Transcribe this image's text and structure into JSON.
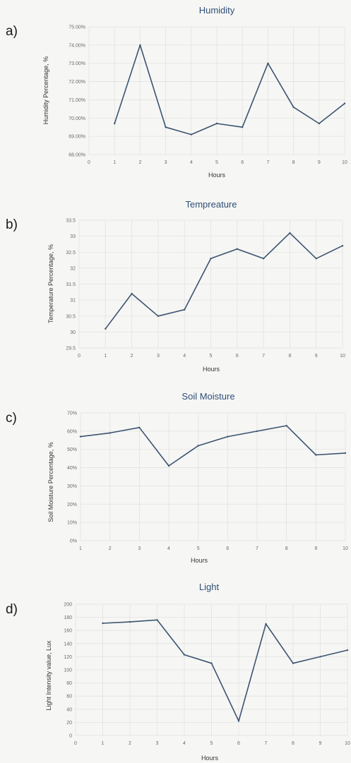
{
  "panel_letters": [
    "a)",
    "b)",
    "c)",
    "d)"
  ],
  "colors": {
    "line": "#3b5470",
    "title": "#2f4f78",
    "grid": "#e2e2e2",
    "background": "#f6f6f4"
  },
  "chart_data": [
    {
      "type": "line",
      "title": "Humidity",
      "xlabel": "Hours",
      "ylabel": "Humidity Percentage, %",
      "x": [
        1,
        2,
        3,
        4,
        5,
        6,
        7,
        8,
        9,
        10
      ],
      "series": [
        {
          "values": [
            69.7,
            74.0,
            69.5,
            69.1,
            69.7,
            69.5,
            73.0,
            70.6,
            69.7,
            70.8
          ]
        }
      ],
      "xlim": [
        0,
        10
      ],
      "ylim": [
        68,
        75
      ],
      "xticks": [
        0,
        1,
        2,
        3,
        4,
        5,
        6,
        7,
        8,
        9,
        10
      ],
      "xtick_labels": [
        "0",
        "1",
        "2",
        "3",
        "4",
        "5",
        "6",
        "7",
        "8",
        "9",
        "10"
      ],
      "yticks": [
        68,
        69,
        70,
        71,
        72,
        73,
        74,
        75
      ],
      "ytick_labels": [
        "68.00%",
        "69.00%",
        "70.00%",
        "71.00%",
        "72.00%",
        "73.00%",
        "74.00%",
        "75.00%"
      ],
      "grid": true,
      "legend": "none"
    },
    {
      "type": "line",
      "title": "Tempreature",
      "xlabel": "Hours",
      "ylabel": "Temperature Percentage, %",
      "x": [
        1,
        2,
        3,
        4,
        5,
        6,
        7,
        8,
        9,
        10
      ],
      "series": [
        {
          "values": [
            30.1,
            31.2,
            30.5,
            30.7,
            32.3,
            32.6,
            32.3,
            33.1,
            32.3,
            32.7
          ]
        }
      ],
      "xlim": [
        0,
        10
      ],
      "ylim": [
        29.5,
        33.5
      ],
      "xticks": [
        0,
        1,
        2,
        3,
        4,
        5,
        6,
        7,
        8,
        9,
        10
      ],
      "xtick_labels": [
        "0",
        "1",
        "2",
        "3",
        "4",
        "5",
        "6",
        "7",
        "8",
        "9",
        "10"
      ],
      "yticks": [
        29.5,
        30,
        30.5,
        31,
        31.5,
        32,
        32.5,
        33,
        33.5
      ],
      "ytick_labels": [
        "29.5",
        "30",
        "30.5",
        "31",
        "31.5",
        "32",
        "32.5",
        "33",
        "33.5"
      ],
      "grid": true,
      "legend": "none"
    },
    {
      "type": "line",
      "title": "Soil Moisture",
      "xlabel": "Hours",
      "ylabel": "Soil Moisture Percentage, %",
      "x": [
        1,
        2,
        3,
        4,
        5,
        6,
        7,
        8,
        9,
        10
      ],
      "series": [
        {
          "values": [
            57,
            59,
            62,
            41,
            52,
            57,
            60,
            63,
            47,
            48
          ]
        }
      ],
      "xlim": [
        1,
        10
      ],
      "ylim": [
        0,
        70
      ],
      "xticks": [
        1,
        2,
        3,
        4,
        5,
        6,
        7,
        8,
        9,
        10
      ],
      "xtick_labels": [
        "1",
        "2",
        "3",
        "4",
        "5",
        "6",
        "7",
        "8",
        "9",
        "10"
      ],
      "yticks": [
        0,
        10,
        20,
        30,
        40,
        50,
        60,
        70
      ],
      "ytick_labels": [
        "0%",
        "10%",
        "20%",
        "30%",
        "40%",
        "50%",
        "60%",
        "70%"
      ],
      "grid": true,
      "legend": "none"
    },
    {
      "type": "line",
      "title": "Light",
      "xlabel": "Hours",
      "ylabel": "Light Intensity value, Lux",
      "x": [
        1,
        2,
        3,
        4,
        5,
        6,
        7,
        8,
        9,
        10
      ],
      "series": [
        {
          "values": [
            171,
            173,
            176,
            123,
            110,
            22,
            170,
            110,
            120,
            130
          ]
        }
      ],
      "xlim": [
        0,
        10
      ],
      "ylim": [
        0,
        200
      ],
      "xticks": [
        0,
        1,
        2,
        3,
        4,
        5,
        6,
        7,
        8,
        9,
        10
      ],
      "xtick_labels": [
        "0",
        "1",
        "2",
        "3",
        "4",
        "5",
        "6",
        "7",
        "8",
        "9",
        "10"
      ],
      "yticks": [
        0,
        20,
        40,
        60,
        80,
        100,
        120,
        140,
        160,
        180,
        200
      ],
      "ytick_labels": [
        "0",
        "20",
        "40",
        "60",
        "80",
        "100",
        "120",
        "140",
        "160",
        "180",
        "200"
      ],
      "grid": true,
      "legend": "none"
    }
  ]
}
